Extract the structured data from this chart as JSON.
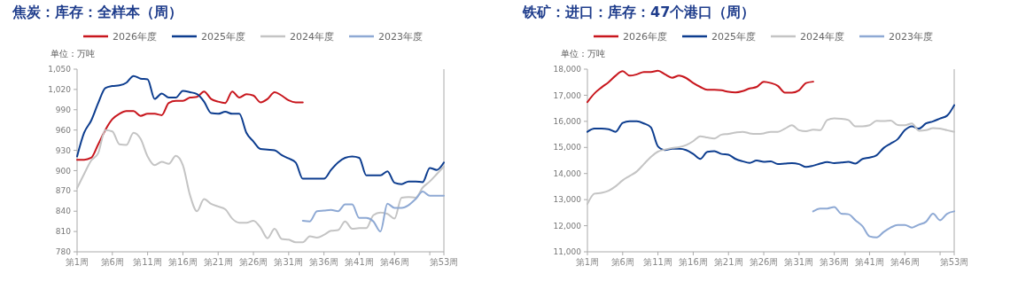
{
  "chart_data": [
    {
      "type": "line",
      "title": "焦炭：库存：全样本（周）",
      "ylabel": "单位：万吨",
      "legend": "top",
      "categories": [
        "第1周",
        null,
        null,
        null,
        null,
        "第6周",
        null,
        null,
        null,
        null,
        "第11周",
        null,
        null,
        null,
        null,
        "第16周",
        null,
        null,
        null,
        null,
        "第21周",
        null,
        null,
        null,
        null,
        "第26周",
        null,
        null,
        null,
        null,
        "第31周",
        null,
        null,
        null,
        null,
        "第36周",
        null,
        null,
        null,
        null,
        "第41周",
        null,
        null,
        null,
        null,
        "第46周",
        null,
        null,
        null,
        null,
        null,
        null,
        "第53周"
      ],
      "ylim": [
        780,
        1050
      ],
      "yticks": [
        {
          "value": 780,
          "label": "780"
        },
        {
          "value": 810,
          "label": "810"
        },
        {
          "value": 840,
          "label": "840"
        },
        {
          "value": 870,
          "label": "870"
        },
        {
          "value": 900,
          "label": "900"
        },
        {
          "value": 930,
          "label": "930"
        },
        {
          "value": 960,
          "label": "960"
        },
        {
          "value": 990,
          "label": "990"
        },
        {
          "value": 1020,
          "label": "1,020"
        },
        {
          "value": 1050,
          "label": "1,050"
        }
      ],
      "series": [
        {
          "name": "2026年度",
          "color": "#c8161d",
          "values": [
            916,
            916,
            919,
            939,
            960,
            976,
            984,
            988,
            988,
            981,
            984,
            984,
            982,
            1000,
            1003,
            1003,
            1008,
            1009,
            1017,
            1006,
            1002,
            1000,
            1017,
            1008,
            1013,
            1011,
            1001,
            1006,
            1016,
            1011,
            1004,
            1001,
            1001,
            null,
            null,
            null,
            null,
            null,
            null,
            null,
            null,
            null,
            null,
            null,
            null,
            null,
            null,
            null,
            null,
            null,
            null,
            null,
            null
          ]
        },
        {
          "name": "2025年度",
          "color": "#0d3d8f",
          "values": [
            921,
            956,
            974,
            1000,
            1022,
            1025,
            1026,
            1030,
            1040,
            1036,
            1035,
            1006,
            1014,
            1008,
            1008,
            1018,
            1016,
            1013,
            1002,
            985,
            984,
            987,
            984,
            984,
            956,
            943,
            932,
            931,
            930,
            923,
            918,
            912,
            888,
            888,
            888,
            888,
            901,
            912,
            919,
            921,
            919,
            893,
            893,
            893,
            899,
            882,
            880,
            884,
            884,
            883,
            904,
            901,
            912
          ]
        },
        {
          "name": "2024年度",
          "color": "#c4c4c4",
          "values": [
            874,
            895,
            915,
            926,
            960,
            958,
            939,
            938,
            956,
            947,
            921,
            908,
            913,
            910,
            922,
            908,
            864,
            840,
            858,
            851,
            847,
            843,
            829,
            823,
            823,
            826,
            816,
            800,
            814,
            799,
            798,
            794,
            794,
            803,
            801,
            805,
            811,
            812,
            825,
            814,
            815,
            815,
            834,
            838,
            836,
            829,
            860,
            861,
            860,
            875,
            884,
            895,
            906
          ]
        },
        {
          "name": "2023年度",
          "color": "#8ea9d4",
          "values": [
            null,
            null,
            null,
            null,
            null,
            null,
            null,
            null,
            null,
            null,
            null,
            null,
            null,
            null,
            null,
            null,
            null,
            null,
            null,
            null,
            null,
            null,
            null,
            null,
            null,
            null,
            null,
            null,
            null,
            null,
            null,
            null,
            826,
            825,
            840,
            841,
            842,
            840,
            850,
            850,
            830,
            830,
            825,
            810,
            851,
            845,
            845,
            849,
            858,
            869,
            863,
            863,
            863
          ]
        }
      ]
    },
    {
      "type": "line",
      "title": "铁矿：进口：库存：47个港口（周）",
      "ylabel": "单位：万吨",
      "legend": "top",
      "categories": [
        "第1周",
        null,
        null,
        null,
        null,
        "第6周",
        null,
        null,
        null,
        null,
        "第11周",
        null,
        null,
        null,
        null,
        "第16周",
        null,
        null,
        null,
        null,
        "第21周",
        null,
        null,
        null,
        null,
        "第26周",
        null,
        null,
        null,
        null,
        "第31周",
        null,
        null,
        null,
        null,
        "第36周",
        null,
        null,
        null,
        null,
        "第41周",
        null,
        null,
        null,
        null,
        "第46周",
        null,
        null,
        null,
        null,
        null,
        null,
        "第53周"
      ],
      "ylim": [
        11000,
        18000
      ],
      "yticks": [
        {
          "value": 11000,
          "label": "11,000"
        },
        {
          "value": 12000,
          "label": "12,000"
        },
        {
          "value": 13000,
          "label": "13,000"
        },
        {
          "value": 14000,
          "label": "14,000"
        },
        {
          "value": 15000,
          "label": "15,000"
        },
        {
          "value": 16000,
          "label": "16,000"
        },
        {
          "value": 17000,
          "label": "17,000"
        },
        {
          "value": 18000,
          "label": "18,000"
        }
      ],
      "series": [
        {
          "name": "2026年度",
          "color": "#c8161d",
          "values": [
            16740,
            17070,
            17300,
            17500,
            17750,
            17920,
            17750,
            17800,
            17890,
            17890,
            17940,
            17800,
            17670,
            17750,
            17660,
            17470,
            17320,
            17210,
            17210,
            17190,
            17130,
            17110,
            17160,
            17260,
            17320,
            17520,
            17470,
            17360,
            17100,
            17100,
            17190,
            17470,
            17520,
            null,
            null,
            null,
            null,
            null,
            null,
            null,
            null,
            null,
            null,
            null,
            null,
            null,
            null,
            null,
            null,
            null,
            null,
            null,
            null
          ]
        },
        {
          "name": "2025年度",
          "color": "#0d3d8f",
          "values": [
            15600,
            15720,
            15720,
            15700,
            15600,
            15940,
            16000,
            16000,
            15920,
            15770,
            15040,
            14900,
            14950,
            14950,
            14900,
            14750,
            14560,
            14830,
            14860,
            14750,
            14720,
            14560,
            14470,
            14410,
            14500,
            14450,
            14470,
            14360,
            14380,
            14400,
            14360,
            14250,
            14300,
            14380,
            14440,
            14400,
            14420,
            14450,
            14380,
            14560,
            14610,
            14700,
            14980,
            15150,
            15320,
            15660,
            15810,
            15720,
            15920,
            16000,
            16110,
            16220,
            16620
          ]
        },
        {
          "name": "2024年度",
          "color": "#c4c4c4",
          "values": [
            12830,
            13230,
            13260,
            13340,
            13510,
            13740,
            13910,
            14080,
            14360,
            14640,
            14840,
            14920,
            14980,
            15010,
            15090,
            15240,
            15430,
            15380,
            15340,
            15490,
            15520,
            15570,
            15600,
            15540,
            15520,
            15540,
            15600,
            15600,
            15720,
            15850,
            15660,
            15620,
            15680,
            15660,
            16050,
            16110,
            16100,
            16050,
            15810,
            15810,
            15850,
            16020,
            16010,
            16030,
            15860,
            15850,
            15920,
            15640,
            15660,
            15740,
            15720,
            15660,
            15600
          ]
        },
        {
          "name": "2023年度",
          "color": "#8ea9d4",
          "values": [
            null,
            null,
            null,
            null,
            null,
            null,
            null,
            null,
            null,
            null,
            null,
            null,
            null,
            null,
            null,
            null,
            null,
            null,
            null,
            null,
            null,
            null,
            null,
            null,
            null,
            null,
            null,
            null,
            null,
            null,
            null,
            null,
            12550,
            12660,
            12660,
            12720,
            12460,
            12440,
            12210,
            11980,
            11590,
            11550,
            11760,
            11930,
            12030,
            12030,
            11930,
            12040,
            12150,
            12460,
            12210,
            12460,
            12550
          ]
        }
      ]
    }
  ]
}
